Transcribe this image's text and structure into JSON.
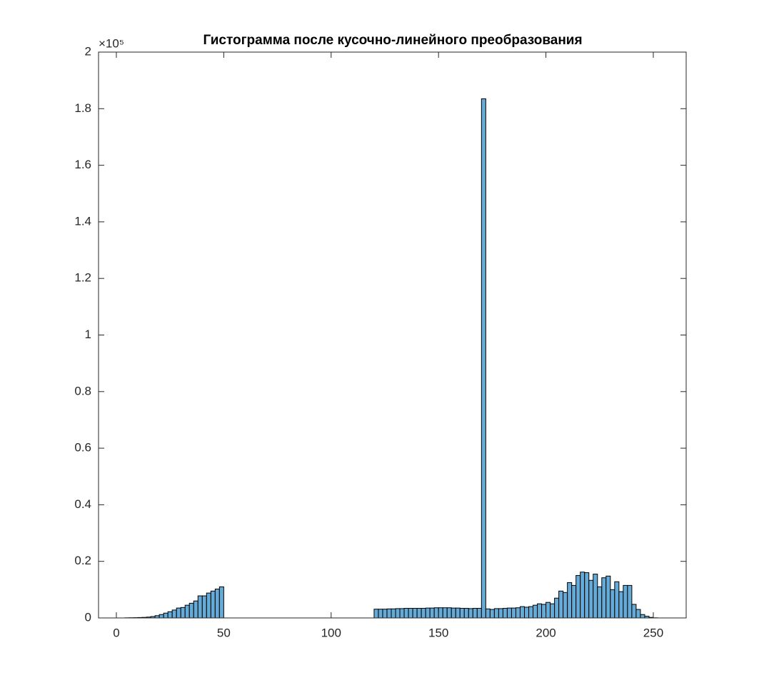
{
  "chart_data": {
    "type": "histogram",
    "title": "Гистограмма после кусочно-линейного преобразования",
    "y_scale_label": "×10⁵",
    "bins": [
      4,
      6,
      8,
      10,
      12,
      14,
      16,
      18,
      20,
      22,
      24,
      26,
      28,
      30,
      32,
      34,
      36,
      38,
      40,
      42,
      44,
      46,
      48,
      50,
      52,
      54,
      56,
      58,
      60,
      62,
      64,
      66,
      68,
      70,
      72,
      74,
      76,
      78,
      80,
      82,
      84,
      86,
      88,
      90,
      92,
      94,
      96,
      98,
      100,
      102,
      104,
      106,
      108,
      110,
      112,
      114,
      116,
      118,
      120,
      122,
      124,
      126,
      128,
      130,
      132,
      134,
      136,
      138,
      140,
      142,
      144,
      146,
      148,
      150,
      152,
      154,
      156,
      158,
      160,
      162,
      164,
      166,
      168,
      170,
      172,
      174,
      176,
      178,
      180,
      182,
      184,
      186,
      188,
      190,
      192,
      194,
      196,
      198,
      200,
      202,
      204,
      206,
      208,
      210,
      212,
      214,
      216,
      218,
      220,
      222,
      224,
      226,
      228,
      230,
      232,
      234,
      236,
      238,
      240,
      242,
      244,
      246,
      248,
      250,
      252
    ],
    "values": [
      0.0005,
      0.0007,
      0.001,
      0.0015,
      0.002,
      0.003,
      0.005,
      0.008,
      0.012,
      0.017,
      0.022,
      0.028,
      0.035,
      0.037,
      0.045,
      0.052,
      0.06,
      0.078,
      0.078,
      0.088,
      0.095,
      0.102,
      0.11,
      0,
      0,
      0,
      0,
      0,
      0,
      0,
      0,
      0,
      0,
      0,
      0,
      0,
      0,
      0,
      0,
      0,
      0,
      0,
      0,
      0,
      0,
      0,
      0,
      0,
      0,
      0,
      0,
      0,
      0,
      0,
      0,
      0,
      0,
      0,
      0.031,
      0.031,
      0.031,
      0.032,
      0.032,
      0.033,
      0.033,
      0.034,
      0.034,
      0.034,
      0.034,
      0.034,
      0.035,
      0.035,
      0.036,
      0.036,
      0.036,
      0.036,
      0.035,
      0.035,
      0.034,
      0.034,
      0.033,
      0.034,
      0.034,
      1.835,
      0.032,
      0.03,
      0.033,
      0.033,
      0.034,
      0.035,
      0.035,
      0.036,
      0.04,
      0.038,
      0.04,
      0.045,
      0.05,
      0.048,
      0.055,
      0.05,
      0.07,
      0.095,
      0.09,
      0.125,
      0.115,
      0.15,
      0.162,
      0.16,
      0.133,
      0.155,
      0.11,
      0.142,
      0.148,
      0.1,
      0.128,
      0.093,
      0.115,
      0.115,
      0.048,
      0.03,
      0.012,
      0.006,
      0.002,
      0.0005
    ],
    "color": "#66aad7",
    "edgecolor": "#000000",
    "xlim": [
      -8.3,
      265.3
    ],
    "xticks": [
      0,
      50,
      100,
      150,
      200,
      250
    ],
    "ylim": [
      0,
      2
    ],
    "yticks": [
      0,
      0.2,
      0.4,
      0.6,
      0.8,
      1,
      1.2,
      1.4,
      1.6,
      1.8,
      2
    ]
  }
}
